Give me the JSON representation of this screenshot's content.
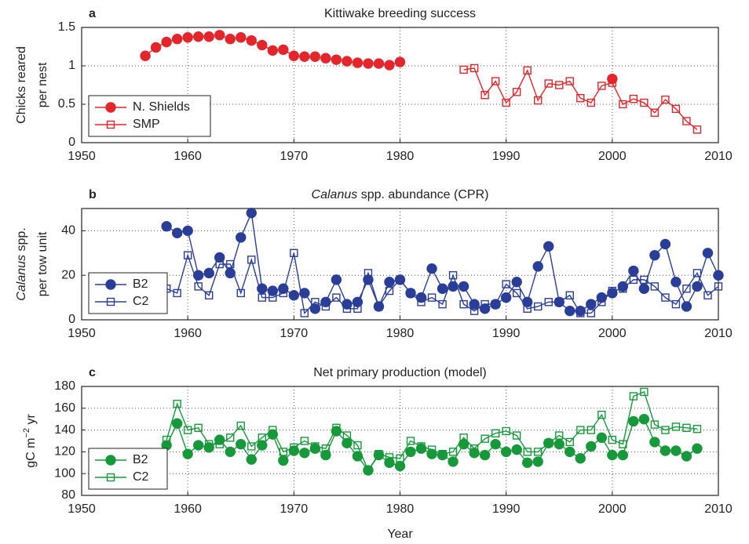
{
  "chart_data": [
    {
      "type": "line",
      "panel": "a",
      "title": [
        {
          "text": "Kittiwake breeding success"
        }
      ],
      "ylabel": [
        [
          {
            "text": "Chicks reared"
          }
        ],
        [
          {
            "text": "per nest"
          }
        ]
      ],
      "xlim": [
        1950,
        2010
      ],
      "xticks": [
        1950,
        1960,
        1970,
        1980,
        1990,
        2000,
        2010
      ],
      "ylim": [
        0,
        1.5
      ],
      "yticks": [
        0,
        0.5,
        1,
        1.5
      ],
      "grid": true,
      "legend": "lower left",
      "series": [
        {
          "name": "N. Shields",
          "color": "#e3262c",
          "marker": "circle",
          "filled": true,
          "x": [
            1956,
            1957,
            1958,
            1959,
            1960,
            1961,
            1962,
            1963,
            1964,
            1965,
            1966,
            1967,
            1968,
            1969,
            1970,
            1971,
            1972,
            1973,
            1974,
            1975,
            1976,
            1977,
            1978,
            1979,
            1980,
            1981,
            1982,
            1983,
            1984,
            1985,
            1986,
            1987,
            1988,
            1989,
            1990,
            1991,
            1992,
            1993,
            1994,
            1995,
            1996,
            1997,
            1998,
            1999,
            2000
          ],
          "values": [
            1.13,
            1.24,
            1.31,
            1.35,
            1.37,
            1.38,
            1.38,
            1.4,
            1.35,
            1.37,
            1.33,
            1.27,
            1.2,
            1.21,
            1.13,
            1.12,
            1.12,
            1.1,
            1.08,
            1.06,
            1.04,
            1.03,
            1.03,
            1.01,
            1.05,
            null,
            null,
            null,
            null,
            null,
            null,
            null,
            null,
            null,
            null,
            null,
            null,
            null,
            null,
            null,
            null,
            null,
            null,
            null,
            0.83
          ]
        },
        {
          "name": "SMP",
          "color": "#e3262c",
          "marker": "square",
          "filled": false,
          "x": [
            1986,
            1987,
            1988,
            1989,
            1990,
            1991,
            1992,
            1993,
            1994,
            1995,
            1996,
            1997,
            1998,
            1999,
            2000,
            2001,
            2002,
            2003,
            2004,
            2005,
            2006,
            2007,
            2008
          ],
          "values": [
            0.95,
            0.97,
            0.62,
            0.8,
            0.52,
            0.66,
            0.94,
            0.55,
            0.77,
            0.75,
            0.8,
            0.58,
            0.52,
            0.74,
            0.78,
            0.5,
            0.57,
            0.52,
            0.39,
            0.56,
            0.44,
            0.28,
            0.17
          ]
        }
      ]
    },
    {
      "type": "line",
      "panel": "b",
      "title": [
        {
          "text": "Calanus",
          "italic": true
        },
        {
          "text": " spp. abundance (CPR)"
        }
      ],
      "ylabel": [
        [
          {
            "text": "Calanus",
            "italic": true
          },
          {
            "text": " spp."
          }
        ],
        [
          {
            "text": "per tow unit"
          }
        ]
      ],
      "xlim": [
        1950,
        2010
      ],
      "xticks": [
        1950,
        1960,
        1970,
        1980,
        1990,
        2000,
        2010
      ],
      "ylim": [
        0,
        50
      ],
      "yticks": [
        0,
        20,
        40
      ],
      "grid": true,
      "legend": "lower left",
      "series": [
        {
          "name": "B2",
          "color": "#2a3e98",
          "marker": "circle",
          "filled": true,
          "x": [
            1958,
            1959,
            1960,
            1961,
            1962,
            1963,
            1964,
            1965,
            1966,
            1967,
            1968,
            1969,
            1970,
            1971,
            1972,
            1973,
            1974,
            1975,
            1976,
            1977,
            1978,
            1979,
            1980,
            1981,
            1982,
            1983,
            1984,
            1985,
            1986,
            1987,
            1988,
            1989,
            1990,
            1991,
            1992,
            1993,
            1994,
            1995,
            1996,
            1997,
            1998,
            1999,
            2000,
            2001,
            2002,
            2003,
            2004,
            2005,
            2006,
            2007,
            2008,
            2009,
            2010
          ],
          "values": [
            42,
            39,
            40,
            20,
            21,
            28,
            21,
            37,
            48,
            14,
            13,
            14,
            11,
            12,
            5,
            8,
            18,
            7,
            8,
            18,
            6,
            17,
            18,
            12,
            10,
            23,
            14,
            15,
            15,
            7,
            5,
            7,
            10,
            17,
            8,
            24,
            33,
            8,
            4,
            4,
            7,
            10,
            12,
            15,
            22,
            14,
            29,
            34,
            17,
            6,
            15,
            30,
            20
          ]
        },
        {
          "name": "C2",
          "color": "#2a3e98",
          "marker": "square",
          "filled": false,
          "x": [
            1958,
            1959,
            1960,
            1961,
            1962,
            1963,
            1964,
            1965,
            1966,
            1967,
            1968,
            1969,
            1970,
            1971,
            1972,
            1973,
            1974,
            1975,
            1976,
            1977,
            1978,
            1979,
            1980,
            1981,
            1982,
            1983,
            1984,
            1985,
            1986,
            1987,
            1988,
            1989,
            1990,
            1991,
            1992,
            1993,
            1994,
            1995,
            1996,
            1997,
            1998,
            1999,
            2000,
            2001,
            2002,
            2003,
            2004,
            2005,
            2006,
            2007,
            2008,
            2009,
            2010
          ],
          "values": [
            14,
            12,
            29,
            15,
            11,
            25,
            25,
            12,
            27,
            10,
            10,
            12,
            30,
            3,
            8,
            6,
            10,
            5,
            5,
            21,
            6,
            13,
            18,
            12,
            8,
            10,
            7,
            20,
            7,
            4,
            7,
            7,
            16,
            12,
            5,
            6,
            8,
            8,
            11,
            3,
            3,
            8,
            13,
            14,
            18,
            18,
            15,
            10,
            7,
            14,
            21,
            11,
            15
          ]
        }
      ]
    },
    {
      "type": "line",
      "panel": "c",
      "title": [
        {
          "text": "Net primary production (model)"
        }
      ],
      "ylabel": [
        [
          {
            "text": "gC m"
          },
          {
            "text": "−2",
            "sup": true
          },
          {
            "text": " yr"
          }
        ]
      ],
      "xlabel": "Year",
      "xlim": [
        1950,
        2010
      ],
      "xticks": [
        1950,
        1960,
        1970,
        1980,
        1990,
        2000,
        2010
      ],
      "ylim": [
        80,
        180
      ],
      "yticks": [
        80,
        100,
        120,
        140,
        160,
        180
      ],
      "grid": true,
      "legend": "lower left",
      "series": [
        {
          "name": "B2",
          "color": "#17993b",
          "marker": "circle",
          "filled": true,
          "x": [
            1958,
            1959,
            1960,
            1961,
            1962,
            1963,
            1964,
            1965,
            1966,
            1967,
            1968,
            1969,
            1970,
            1971,
            1972,
            1973,
            1974,
            1975,
            1976,
            1977,
            1978,
            1979,
            1980,
            1981,
            1982,
            1983,
            1984,
            1985,
            1986,
            1987,
            1988,
            1989,
            1990,
            1991,
            1992,
            1993,
            1994,
            1995,
            1996,
            1997,
            1998,
            1999,
            2000,
            2001,
            2002,
            2003,
            2004,
            2005,
            2006,
            2007,
            2008
          ],
          "values": [
            126,
            146,
            118,
            126,
            124,
            131,
            120,
            127,
            113,
            126,
            136,
            112,
            121,
            119,
            123,
            117,
            139,
            128,
            116,
            103,
            117,
            110,
            107,
            120,
            123,
            118,
            117,
            111,
            127,
            119,
            117,
            127,
            120,
            122,
            110,
            111,
            128,
            127,
            120,
            114,
            125,
            133,
            117,
            117,
            148,
            150,
            129,
            121,
            121,
            116,
            123
          ]
        },
        {
          "name": "C2",
          "color": "#17993b",
          "marker": "square",
          "filled": false,
          "x": [
            1958,
            1959,
            1960,
            1961,
            1962,
            1963,
            1964,
            1965,
            1966,
            1967,
            1968,
            1969,
            1970,
            1971,
            1972,
            1973,
            1974,
            1975,
            1976,
            1977,
            1978,
            1979,
            1980,
            1981,
            1982,
            1983,
            1984,
            1985,
            1986,
            1987,
            1988,
            1989,
            1990,
            1991,
            1992,
            1993,
            1994,
            1995,
            1996,
            1997,
            1998,
            1999,
            2000,
            2001,
            2002,
            2003,
            2004,
            2005,
            2006,
            2007,
            2008
          ],
          "values": [
            131,
            164,
            140,
            142,
            127,
            127,
            133,
            144,
            125,
            133,
            140,
            120,
            124,
            130,
            125,
            123,
            142,
            135,
            126,
            103,
            118,
            115,
            114,
            130,
            125,
            122,
            118,
            120,
            133,
            123,
            132,
            137,
            139,
            135,
            120,
            120,
            128,
            135,
            129,
            140,
            140,
            154,
            131,
            127,
            171,
            175,
            145,
            140,
            143,
            142,
            141
          ]
        }
      ]
    }
  ]
}
